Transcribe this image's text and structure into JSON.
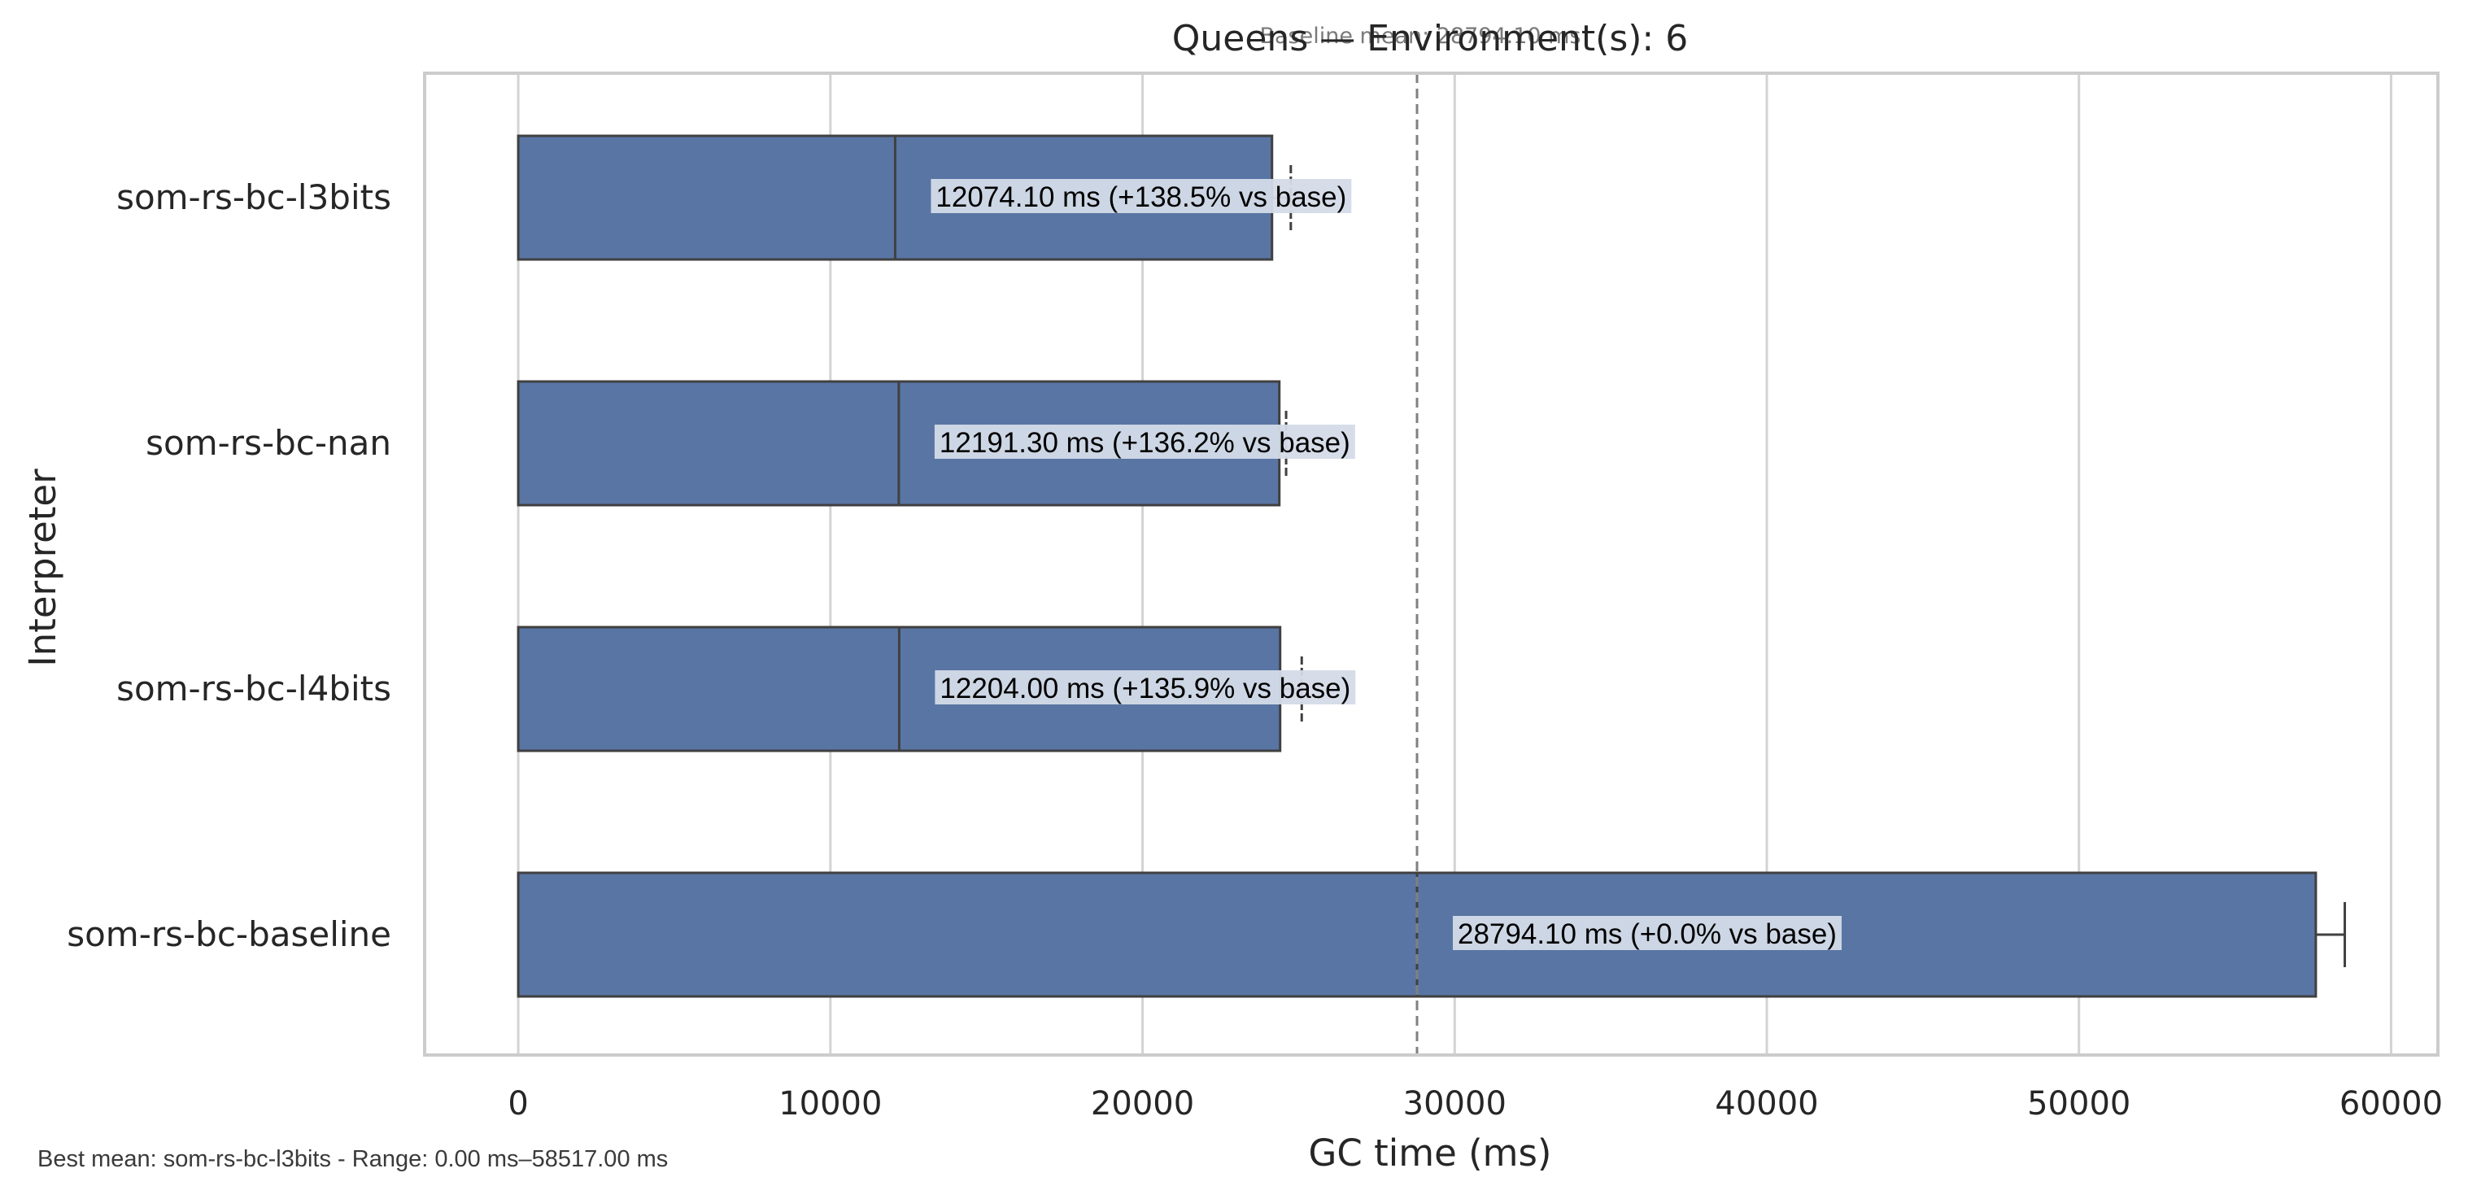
{
  "chart_data": {
    "type": "bar",
    "orientation": "horizontal",
    "title": "Queens — Environment(s): 6",
    "baseline_annotation": "Baseline mean: 28794.10 ms",
    "xlabel": "GC time (ms)",
    "ylabel": "Interpreter",
    "xlim": [
      -3000,
      61500
    ],
    "xticks": [
      0,
      10000,
      20000,
      30000,
      40000,
      50000,
      60000
    ],
    "xtick_labels": [
      "0",
      "10000",
      "20000",
      "30000",
      "40000",
      "50000",
      "60000"
    ],
    "grid": "vertical",
    "baseline_value": 28794.1,
    "categories": [
      "som-rs-bc-l3bits",
      "som-rs-bc-nan",
      "som-rs-bc-l4bits",
      "som-rs-bc-baseline"
    ],
    "series": [
      {
        "values": [
          24148.2,
          24382.6,
          24408.0,
          57588.2
        ],
        "means": [
          12074.1,
          12191.3,
          12204.0,
          28794.1
        ],
        "error_high": [
          24750,
          24600,
          25100,
          58517
        ],
        "labels": [
          "12074.10 ms  (+138.5% vs base)",
          "12191.30 ms  (+136.2% vs base)",
          "12204.00 ms  (+135.9% vs base)",
          "28794.10 ms  (+0.0% vs base)"
        ]
      }
    ],
    "footer": "Best mean: som-rs-bc-l3bits - Range: 0.00 ms–58517.00 ms"
  },
  "colors": {
    "bar_fill": "#5975a4",
    "bar_edge": "#404040",
    "grid": "#d3d3d3",
    "frame": "#cccccc",
    "baseline_line": "#808080",
    "label_bg": "#d4dbe8",
    "text": "#262626"
  }
}
